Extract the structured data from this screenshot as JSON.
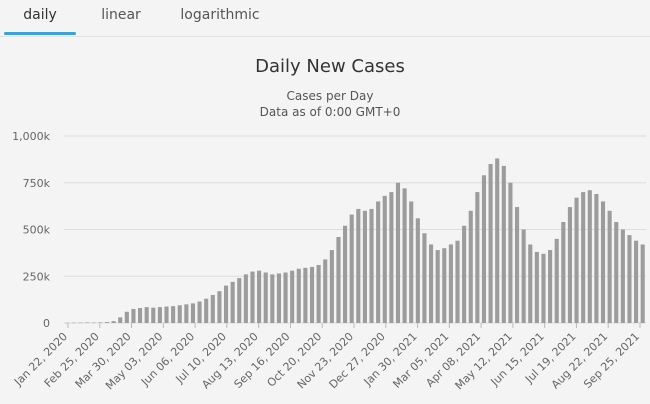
{
  "tabs": [
    {
      "label": "daily",
      "active": true
    },
    {
      "label": "linear",
      "active": false
    },
    {
      "label": "logarithmic",
      "active": false
    }
  ],
  "colors": {
    "accent": "#3aa2d8",
    "bar": "#9c9c9c",
    "grid": "#dddddd",
    "background": "#f4f4f4"
  },
  "chart_data": {
    "type": "bar",
    "title": "Daily New Cases",
    "subtitle_lines": [
      "Cases per Day",
      "Data as of 0:00 GMT+0"
    ],
    "xlabel": "",
    "ylabel": "",
    "ylim": [
      0,
      1000000
    ],
    "yticks": [
      0,
      250000,
      500000,
      750000,
      1000000
    ],
    "ytick_labels": [
      "0",
      "250k",
      "500k",
      "750k",
      "1,000k"
    ],
    "grid": true,
    "xtick_labels": [
      "Jan 22, 2020",
      "Feb 25, 2020",
      "Mar 30, 2020",
      "May 03, 2020",
      "Jun 06, 2020",
      "Jul 10, 2020",
      "Aug 13, 2020",
      "Sep 16, 2020",
      "Oct 20, 2020",
      "Nov 23, 2020",
      "Dec 27, 2020",
      "Jan 30, 2021",
      "Mar 05, 2021",
      "Apr 08, 2021",
      "May 12, 2021",
      "Jun 15, 2021",
      "Jul 19, 2021",
      "Aug 22, 2021",
      "Sep 25, 2021"
    ],
    "series": [
      {
        "x_start": "Jan 22, 2020",
        "x_step_days": 7,
        "values": [
          1000,
          2000,
          2000,
          3000,
          2000,
          3000,
          5000,
          10000,
          30000,
          60000,
          75000,
          80000,
          85000,
          82000,
          85000,
          88000,
          90000,
          95000,
          100000,
          105000,
          115000,
          130000,
          150000,
          170000,
          200000,
          220000,
          240000,
          260000,
          275000,
          280000,
          270000,
          260000,
          265000,
          270000,
          280000,
          290000,
          295000,
          300000,
          310000,
          340000,
          390000,
          460000,
          520000,
          580000,
          610000,
          600000,
          610000,
          650000,
          680000,
          700000,
          750000,
          720000,
          650000,
          560000,
          480000,
          420000,
          390000,
          400000,
          420000,
          440000,
          520000,
          600000,
          700000,
          790000,
          850000,
          880000,
          840000,
          750000,
          620000,
          500000,
          420000,
          380000,
          370000,
          390000,
          450000,
          540000,
          620000,
          670000,
          700000,
          710000,
          690000,
          650000,
          600000,
          540000,
          500000,
          470000,
          440000,
          420000
        ]
      }
    ]
  }
}
